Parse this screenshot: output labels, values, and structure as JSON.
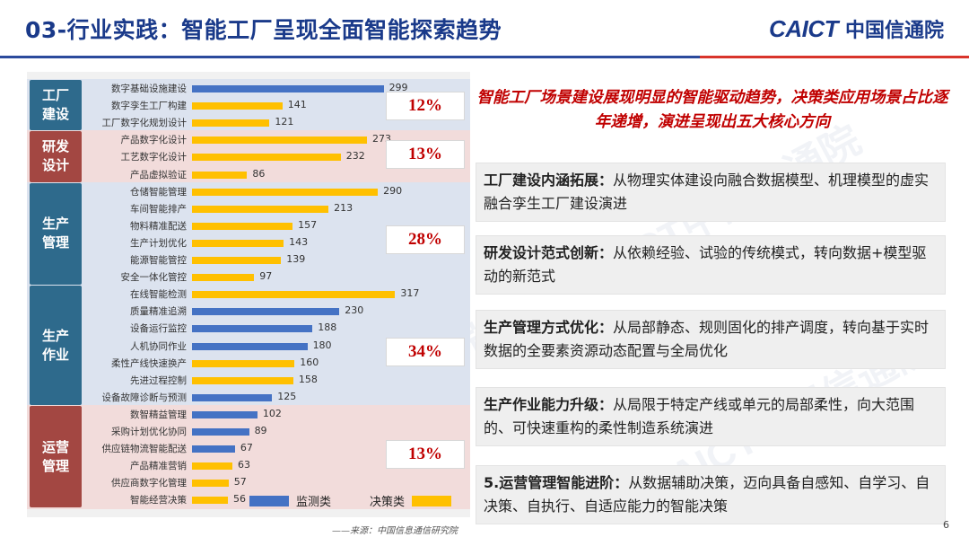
{
  "header": {
    "title": "03-行业实践：智能工厂呈现全面智能探索趋势",
    "logo_mark": "CAICT",
    "logo_cn": "中国信通院"
  },
  "watermark": "CAICT中国信通院",
  "colors": {
    "blue_bar": "#4472c4",
    "yellow_bar": "#ffc000",
    "title_blue": "#1a3a8a",
    "accent_red": "#c00000",
    "band_blue": "#dce3ef",
    "band_pink": "#f2dcdb"
  },
  "chart_data": {
    "type": "bar",
    "orientation": "horizontal",
    "xlim": [
      0,
      350
    ],
    "grid": false,
    "legend": {
      "position": "bottom-right",
      "items": [
        {
          "name": "监测类",
          "color": "#4472c4"
        },
        {
          "name": "决策类",
          "color": "#ffc000"
        }
      ]
    },
    "groups": [
      {
        "name": "工厂\n建设",
        "pct": "12%",
        "color": "#2e6a8c",
        "band": "#dce3ef",
        "rows": [
          {
            "label": "数字基础设施建设",
            "value": 299,
            "series": "监测类"
          },
          {
            "label": "数字孪生工厂构建",
            "value": 141,
            "series": "决策类"
          },
          {
            "label": "工厂数字化规划设计",
            "value": 121,
            "series": "决策类"
          }
        ]
      },
      {
        "name": "研发\n设计",
        "pct": "13%",
        "color": "#a34742",
        "band": "#f2dcdb",
        "rows": [
          {
            "label": "产品数字化设计",
            "value": 273,
            "series": "决策类"
          },
          {
            "label": "工艺数字化设计",
            "value": 232,
            "series": "决策类"
          },
          {
            "label": "产品虚拟验证",
            "value": 86,
            "series": "决策类"
          }
        ]
      },
      {
        "name": "生产\n管理",
        "pct": "28%",
        "color": "#2e6a8c",
        "band": "#dce3ef",
        "rows": [
          {
            "label": "仓储智能管理",
            "value": 290,
            "series": "决策类"
          },
          {
            "label": "车间智能排产",
            "value": 213,
            "series": "决策类"
          },
          {
            "label": "物料精准配送",
            "value": 157,
            "series": "决策类"
          },
          {
            "label": "生产计划优化",
            "value": 143,
            "series": "决策类"
          },
          {
            "label": "能源智能管控",
            "value": 139,
            "series": "决策类"
          },
          {
            "label": "安全一体化管控",
            "value": 97,
            "series": "决策类"
          }
        ]
      },
      {
        "name": "生产\n作业",
        "pct": "34%",
        "color": "#2e6a8c",
        "band": "#dce3ef",
        "rows": [
          {
            "label": "在线智能检测",
            "value": 317,
            "series": "决策类"
          },
          {
            "label": "质量精准追溯",
            "value": 230,
            "series": "监测类"
          },
          {
            "label": "设备运行监控",
            "value": 188,
            "series": "监测类"
          },
          {
            "label": "人机协同作业",
            "value": 180,
            "series": "监测类"
          },
          {
            "label": "柔性产线快速换产",
            "value": 160,
            "series": "决策类"
          },
          {
            "label": "先进过程控制",
            "value": 158,
            "series": "决策类"
          },
          {
            "label": "设备故障诊断与预测",
            "value": 125,
            "series": "监测类"
          }
        ]
      },
      {
        "name": "运营\n管理",
        "pct": "13%",
        "color": "#a34742",
        "band": "#f2dcdb",
        "rows": [
          {
            "label": "数智精益管理",
            "value": 102,
            "series": "监测类"
          },
          {
            "label": "采购计划优化协同",
            "value": 89,
            "series": "监测类"
          },
          {
            "label": "供应链物流智能配送",
            "value": 67,
            "series": "监测类"
          },
          {
            "label": "产品精准营销",
            "value": 63,
            "series": "决策类"
          },
          {
            "label": "供应商数字化管理",
            "value": 57,
            "series": "决策类"
          },
          {
            "label": "智能经营决策",
            "value": 56,
            "series": "决策类"
          }
        ]
      }
    ]
  },
  "subtitle": "智能工厂场景建设展现明显的智能驱动趋势，决策类应用场景占比逐年递增，演进呈现出五大核心方向",
  "directions": [
    {
      "head": "工厂建设内涵拓展：",
      "text": "从物理实体建设向融合数据模型、机理模型的虚实融合孪生工厂建设演进"
    },
    {
      "head": "研发设计范式创新：",
      "text": "从依赖经验、试验的传统模式，转向数据+模型驱动的新范式"
    },
    {
      "head": "生产管理方式优化：",
      "text": "从局部静态、规则固化的排产调度，转向基于实时数据的全要素资源动态配置与全局优化"
    },
    {
      "head": "生产作业能力升级：",
      "text": "从局限于特定产线或单元的局部柔性，向大范围的、可快速重构的柔性制造系统演进"
    },
    {
      "head": "5.运营管理智能进阶：",
      "text": "从数据辅助决策，迈向具备自感知、自学习、自决策、自执行、自适应能力的智能决策"
    }
  ],
  "source": "——来源：中国信息通信研究院",
  "page_number": "6"
}
